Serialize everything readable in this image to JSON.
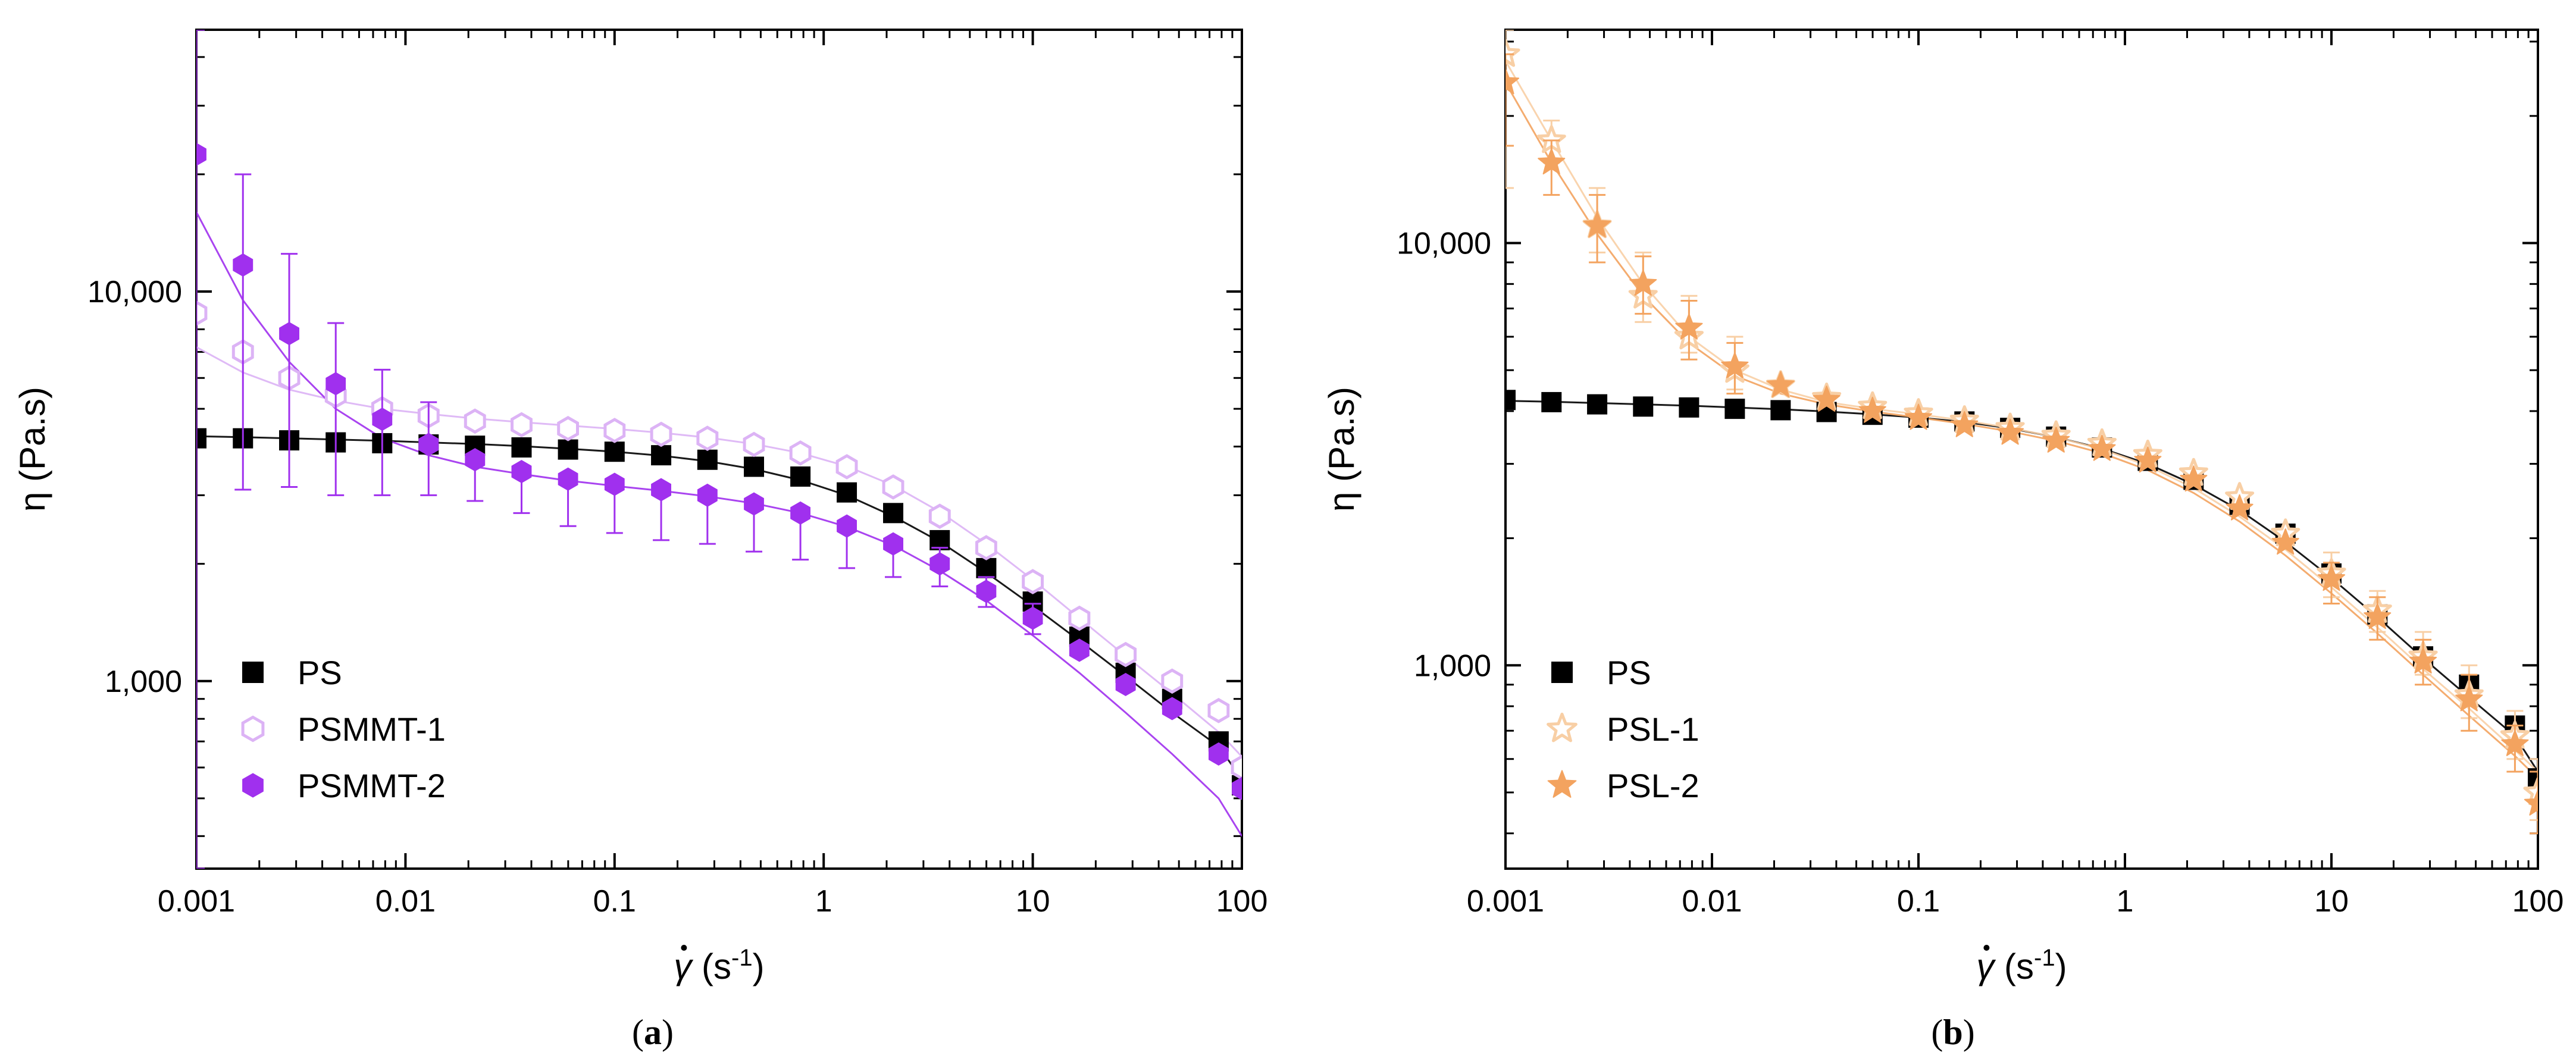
{
  "figure": {
    "caption_a": "(a)",
    "caption_b": "(b)"
  },
  "chart_data": [
    {
      "type": "scatter",
      "panel": "a",
      "xscale": "log",
      "yscale": "log",
      "xlim": [
        0.001,
        100
      ],
      "ylim": [
        330,
        47000
      ],
      "xlabel": "γ̇ (s⁻¹)",
      "xlabel_parts": {
        "symbol": "γ",
        "pre": " (s",
        "sup": "-1",
        "post": ")"
      },
      "ylabel": "η (Pa.s)",
      "xticks": [
        {
          "value": 0.001,
          "label": "0.001"
        },
        {
          "value": 0.01,
          "label": "0.01"
        },
        {
          "value": 0.1,
          "label": "0.1"
        },
        {
          "value": 1,
          "label": "1"
        },
        {
          "value": 10,
          "label": "10"
        },
        {
          "value": 100,
          "label": "100"
        }
      ],
      "yticks": [
        {
          "value": 1000,
          "label": "1,000"
        },
        {
          "value": 10000,
          "label": "10,000"
        }
      ],
      "legend_position": "bottom-left",
      "x": [
        0.001,
        0.00167,
        0.00278,
        0.00464,
        0.00774,
        0.0129,
        0.0215,
        0.0359,
        0.0599,
        0.1,
        0.167,
        0.278,
        0.464,
        0.774,
        1.29,
        2.15,
        3.59,
        5.99,
        10,
        16.7,
        27.8,
        46.4,
        77.4,
        100
      ],
      "series": [
        {
          "name": "PS",
          "marker": "square",
          "color": "#000000",
          "values": [
            4200,
            4200,
            4150,
            4100,
            4080,
            4050,
            4020,
            3980,
            3930,
            3880,
            3800,
            3700,
            3550,
            3350,
            3050,
            2700,
            2300,
            1950,
            1600,
            1300,
            1050,
            900,
            700,
            540
          ],
          "fit": [
            4250,
            4230,
            4200,
            4170,
            4140,
            4100,
            4060,
            4010,
            3950,
            3880,
            3790,
            3670,
            3500,
            3280,
            3000,
            2650,
            2280,
            1900,
            1560,
            1270,
            1030,
            830,
            680,
            560
          ]
        },
        {
          "name": "PSMMT-1",
          "marker": "hexagon-open",
          "color": "#dcb3f5",
          "values": [
            8800,
            7000,
            6000,
            5400,
            5000,
            4800,
            4650,
            4550,
            4450,
            4400,
            4300,
            4200,
            4050,
            3850,
            3550,
            3150,
            2650,
            2200,
            1800,
            1450,
            1170,
            1000,
            840,
            600
          ],
          "fit": [
            7200,
            6200,
            5600,
            5250,
            5000,
            4850,
            4720,
            4620,
            4530,
            4440,
            4340,
            4220,
            4060,
            3850,
            3560,
            3180,
            2720,
            2250,
            1820,
            1450,
            1160,
            930,
            740,
            640
          ]
        },
        {
          "name": "PSMMT-2",
          "marker": "hexagon",
          "color": "#a030ee",
          "values": [
            22500,
            11700,
            7800,
            5800,
            4700,
            4050,
            3700,
            3450,
            3300,
            3200,
            3100,
            3000,
            2850,
            2700,
            2500,
            2250,
            2000,
            1700,
            1450,
            1200,
            980,
            850,
            650,
            530
          ],
          "fit": [
            16000,
            9500,
            6600,
            5000,
            4200,
            3800,
            3550,
            3400,
            3270,
            3170,
            3080,
            2980,
            2860,
            2700,
            2490,
            2230,
            1920,
            1610,
            1310,
            1050,
            830,
            650,
            500,
            400
          ],
          "err_hi": [
            47000,
            20000,
            12500,
            8300,
            6300,
            5200,
            null,
            null,
            null,
            null,
            null,
            null,
            null,
            null,
            null,
            null,
            2200,
            1850,
            1580,
            null,
            null,
            null,
            null,
            null
          ],
          "err_lo": [
            330,
            3100,
            3150,
            3000,
            3000,
            3000,
            2900,
            2700,
            2500,
            2400,
            2300,
            2250,
            2150,
            2050,
            1950,
            1850,
            1750,
            1550,
            1320,
            null,
            null,
            null,
            null,
            null
          ]
        }
      ]
    },
    {
      "type": "scatter",
      "panel": "b",
      "xscale": "log",
      "yscale": "log",
      "xlim": [
        0.001,
        100
      ],
      "ylim": [
        330,
        32000
      ],
      "xlabel": "γ̇ (s⁻¹)",
      "xlabel_parts": {
        "symbol": "γ",
        "pre": " (s",
        "sup": "-1",
        "post": ")"
      },
      "ylabel": "η (Pa.s)",
      "xticks": [
        {
          "value": 0.001,
          "label": "0.001"
        },
        {
          "value": 0.01,
          "label": "0.01"
        },
        {
          "value": 0.1,
          "label": "0.1"
        },
        {
          "value": 1,
          "label": "1"
        },
        {
          "value": 10,
          "label": "10"
        },
        {
          "value": 100,
          "label": "100"
        }
      ],
      "yticks": [
        {
          "value": 1000,
          "label": "1,000"
        },
        {
          "value": 10000,
          "label": "10,000"
        }
      ],
      "legend_position": "bottom-left",
      "x": [
        0.001,
        0.00167,
        0.00278,
        0.00464,
        0.00774,
        0.0129,
        0.0215,
        0.0359,
        0.0599,
        0.1,
        0.167,
        0.278,
        0.464,
        0.774,
        1.29,
        2.15,
        3.59,
        5.99,
        10,
        16.7,
        27.8,
        46.4,
        77.4,
        100
      ],
      "series": [
        {
          "name": "PS",
          "marker": "square",
          "color": "#000000",
          "values": [
            4250,
            4200,
            4150,
            4100,
            4080,
            4050,
            4020,
            3980,
            3920,
            3860,
            3780,
            3650,
            3480,
            3280,
            3050,
            2750,
            2400,
            2050,
            1650,
            1320,
            1050,
            900,
            720,
            540
          ],
          "fit": [
            4230,
            4210,
            4180,
            4150,
            4120,
            4080,
            4040,
            3990,
            3930,
            3860,
            3770,
            3640,
            3470,
            3260,
            3000,
            2680,
            2330,
            1960,
            1610,
            1300,
            1040,
            840,
            680,
            560
          ]
        },
        {
          "name": "PSL-1",
          "marker": "star-open",
          "color": "#f8cfa5",
          "values": [
            28000,
            17500,
            11000,
            7500,
            6000,
            5000,
            4600,
            4300,
            4100,
            3950,
            3800,
            3650,
            3500,
            3350,
            3150,
            2850,
            2500,
            2050,
            1650,
            1350,
            1050,
            850,
            680,
            500
          ],
          "fit": [
            27000,
            17500,
            11500,
            8000,
            6000,
            5000,
            4500,
            4200,
            4050,
            3930,
            3800,
            3650,
            3470,
            3250,
            2970,
            2630,
            2250,
            1880,
            1530,
            1230,
            980,
            790,
            630,
            560
          ],
          "err_hi": [
            32000,
            19500,
            13500,
            9500,
            7500,
            6000,
            null,
            null,
            null,
            null,
            null,
            null,
            null,
            null,
            null,
            null,
            null,
            null,
            1850,
            1500,
            1200,
            1000,
            780,
            600
          ],
          "err_lo": [
            13500,
            15500,
            9500,
            6500,
            5500,
            4500,
            null,
            null,
            null,
            null,
            null,
            null,
            null,
            null,
            null,
            null,
            null,
            null,
            1450,
            1200,
            950,
            750,
            600,
            430
          ]
        },
        {
          "name": "PSL-2",
          "marker": "star",
          "color": "#f3a35f",
          "values": [
            24000,
            15500,
            11000,
            8000,
            6300,
            5100,
            4600,
            4250,
            4000,
            3850,
            3700,
            3550,
            3400,
            3250,
            3050,
            2750,
            2350,
            1950,
            1600,
            1300,
            1020,
            830,
            650,
            470
          ],
          "fit": [
            24000,
            15500,
            10500,
            7500,
            5800,
            4850,
            4400,
            4150,
            3990,
            3860,
            3730,
            3580,
            3400,
            3180,
            2900,
            2560,
            2190,
            1820,
            1480,
            1190,
            950,
            760,
            610,
            540
          ],
          "err_hi": [
            28000,
            17500,
            13000,
            9300,
            7300,
            5800,
            null,
            null,
            null,
            null,
            null,
            null,
            null,
            null,
            null,
            null,
            null,
            null,
            1750,
            1450,
            1150,
            950,
            720,
            560
          ],
          "err_lo": [
            17000,
            13000,
            9000,
            6800,
            5300,
            4400,
            null,
            null,
            null,
            null,
            null,
            null,
            null,
            null,
            null,
            null,
            null,
            null,
            1400,
            1150,
            900,
            700,
            560,
            400
          ]
        }
      ]
    }
  ]
}
